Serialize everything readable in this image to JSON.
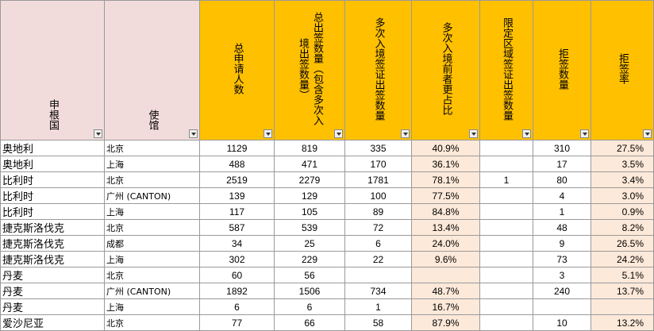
{
  "headers": [
    "申根国",
    "使馆",
    "总申请人数",
    "总出签数量（包含多次入境出签数量）",
    "多次入境签证出签数量",
    "多次入境前者更占比",
    "限定区域签证出签数量",
    "拒签数量",
    "拒签率"
  ],
  "rows": [
    {
      "country": "奥地利",
      "city": "北京",
      "applicants": "1129",
      "issued": "819",
      "multi": "335",
      "share": "40.9%",
      "limited": "",
      "refused": "310",
      "rate": "27.5%"
    },
    {
      "country": "奥地利",
      "city": "上海",
      "applicants": "488",
      "issued": "471",
      "multi": "170",
      "share": "36.1%",
      "limited": "",
      "refused": "17",
      "rate": "3.5%"
    },
    {
      "country": "比利时",
      "city": "北京",
      "applicants": "2519",
      "issued": "2279",
      "multi": "1781",
      "share": "78.1%",
      "limited": "1",
      "refused": "80",
      "rate": "3.4%"
    },
    {
      "country": "比利时",
      "city": "广州 (CANTON)",
      "applicants": "139",
      "issued": "129",
      "multi": "100",
      "share": "77.5%",
      "limited": "",
      "refused": "4",
      "rate": "3.0%"
    },
    {
      "country": "比利时",
      "city": "上海",
      "applicants": "117",
      "issued": "105",
      "multi": "89",
      "share": "84.8%",
      "limited": "",
      "refused": "1",
      "rate": "0.9%"
    },
    {
      "country": "捷克斯洛伐克",
      "city": "北京",
      "applicants": "587",
      "issued": "539",
      "multi": "72",
      "share": "13.4%",
      "limited": "",
      "refused": "48",
      "rate": "8.2%"
    },
    {
      "country": "捷克斯洛伐克",
      "city": "成都",
      "applicants": "34",
      "issued": "25",
      "multi": "6",
      "share": "24.0%",
      "limited": "",
      "refused": "9",
      "rate": "26.5%"
    },
    {
      "country": "捷克斯洛伐克",
      "city": "上海",
      "applicants": "302",
      "issued": "229",
      "multi": "22",
      "share": "9.6%",
      "limited": "",
      "refused": "73",
      "rate": "24.2%"
    },
    {
      "country": "丹麦",
      "city": "北京",
      "applicants": "60",
      "issued": "56",
      "multi": "",
      "share": "",
      "limited": "",
      "refused": "3",
      "rate": "5.1%"
    },
    {
      "country": "丹麦",
      "city": "广州 (CANTON)",
      "applicants": "1892",
      "issued": "1506",
      "multi": "734",
      "share": "48.7%",
      "limited": "",
      "refused": "240",
      "rate": "13.7%"
    },
    {
      "country": "丹麦",
      "city": "上海",
      "applicants": "6",
      "issued": "6",
      "multi": "1",
      "share": "16.7%",
      "limited": "",
      "refused": "",
      "rate": ""
    },
    {
      "country": "爱沙尼亚",
      "city": "北京",
      "applicants": "77",
      "issued": "66",
      "multi": "58",
      "share": "87.9%",
      "limited": "",
      "refused": "10",
      "rate": "13.2%"
    }
  ]
}
